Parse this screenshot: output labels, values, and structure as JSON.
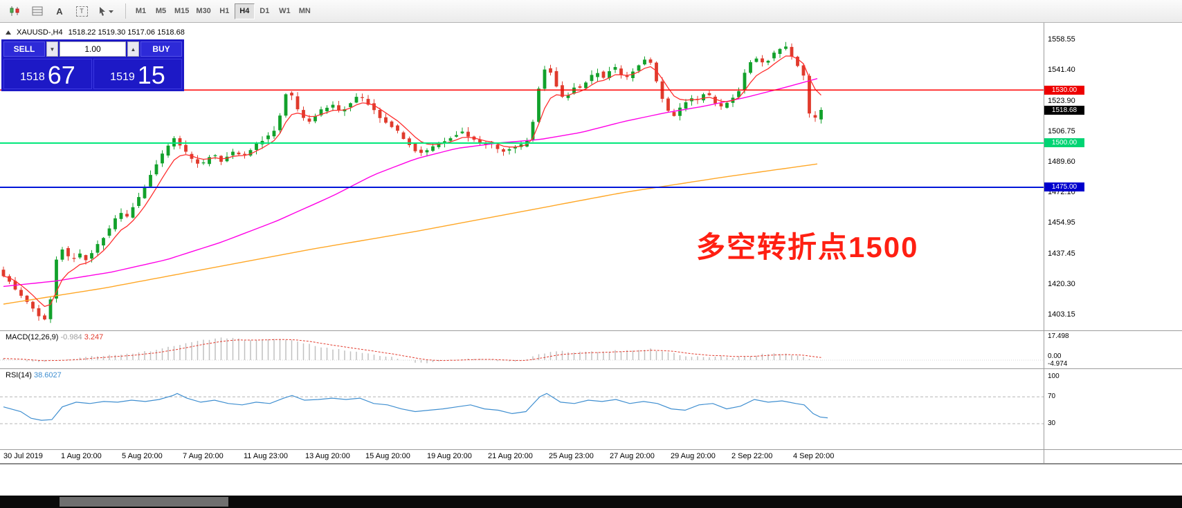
{
  "toolbar": {
    "tools": [
      "candlestick-chart",
      "grid",
      "text-label",
      "text-box",
      "cursor"
    ],
    "text_tool_glyph": "A",
    "textbox_glyph": "T",
    "timeframes": [
      "M1",
      "M5",
      "M15",
      "M30",
      "H1",
      "H4",
      "D1",
      "W1",
      "MN"
    ],
    "active_timeframe": "H4"
  },
  "chart_header": {
    "symbol": "XAUUSD-,H4",
    "ohlc": "1518.22 1519.30 1517.06 1518.68"
  },
  "trade_panel": {
    "sell_label": "SELL",
    "buy_label": "BUY",
    "volume": "1.00",
    "sell_price_main": "1518",
    "sell_price_pips": "67",
    "buy_price_main": "1519",
    "buy_price_pips": "15"
  },
  "price_axis": [
    "1558.55",
    "1541.40",
    "1523.90",
    "1506.75",
    "1489.60",
    "1472.10",
    "1454.95",
    "1437.45",
    "1420.30",
    "1403.15"
  ],
  "level_badges": {
    "resistance": "1530.00",
    "current": "1518.68",
    "pivot": "1500.00",
    "support": "1475.00"
  },
  "macd_panel": {
    "label": "MACD(12,26,9)",
    "main_value": "-0.984",
    "signal_value": "3.247",
    "axis": [
      "17.498",
      "0.00",
      "-4.974"
    ]
  },
  "rsi_panel": {
    "label": "RSI(14)",
    "value": "38.6027",
    "axis": [
      "100",
      "70",
      "30"
    ]
  },
  "time_axis": [
    "30 Jul 2019",
    "1 Aug 20:00",
    "5 Aug 20:00",
    "7 Aug 20:00",
    "11 Aug 23:00",
    "13 Aug 20:00",
    "15 Aug 20:00",
    "19 Aug 20:00",
    "21 Aug 20:00",
    "25 Aug 23:00",
    "27 Aug 20:00",
    "29 Aug 20:00",
    "2 Sep 22:00",
    "4 Sep 20:00"
  ],
  "annotation": {
    "text": "多空转折点1500",
    "color": "#ff1f12"
  },
  "colors": {
    "panel_blue": "#1d19c6",
    "up_candle": "#12a12b",
    "down_candle": "#e03a2c",
    "ma_fast": "#ff2e2e",
    "ma_mid": "#ff00e6",
    "ma_slow": "#ffa726",
    "resistance": "#ff0000",
    "pivot": "#00e87a",
    "support": "#0014d8",
    "rsi_line": "#3e8ed0",
    "macd_bar": "#c0c0c0",
    "macd_signal": "#e23a2c"
  },
  "chart_data": {
    "type": "candlestick",
    "symbol": "XAUUSD-",
    "timeframe": "H4",
    "ohlc": {
      "open": 1518.22,
      "high": 1519.3,
      "low": 1517.06,
      "close": 1518.68
    },
    "levels": {
      "resistance": 1530,
      "pivot": 1500,
      "support": 1475,
      "current_bid": 1518.67,
      "current_ask": 1519.15,
      "last": 1518.68
    },
    "price_axis_range": [
      1403.15,
      1558.55
    ],
    "price_anchors": [
      [
        5,
        1428
      ],
      [
        18,
        1424
      ],
      [
        32,
        1416
      ],
      [
        48,
        1410
      ],
      [
        62,
        1403
      ],
      [
        72,
        1399
      ],
      [
        80,
        1407
      ],
      [
        88,
        1431
      ],
      [
        96,
        1442
      ],
      [
        104,
        1437
      ],
      [
        112,
        1433
      ],
      [
        122,
        1438
      ],
      [
        132,
        1434
      ],
      [
        142,
        1439
      ],
      [
        152,
        1444
      ],
      [
        162,
        1449
      ],
      [
        172,
        1455
      ],
      [
        182,
        1461
      ],
      [
        192,
        1458
      ],
      [
        202,
        1465
      ],
      [
        212,
        1471
      ],
      [
        222,
        1479
      ],
      [
        232,
        1487
      ],
      [
        242,
        1493
      ],
      [
        252,
        1499
      ],
      [
        260,
        1503
      ],
      [
        268,
        1499
      ],
      [
        278,
        1494
      ],
      [
        288,
        1490
      ],
      [
        298,
        1487
      ],
      [
        308,
        1491
      ],
      [
        318,
        1494
      ],
      [
        328,
        1490
      ],
      [
        338,
        1493
      ],
      [
        348,
        1496
      ],
      [
        358,
        1492
      ],
      [
        368,
        1495
      ],
      [
        378,
        1499
      ],
      [
        388,
        1502
      ],
      [
        398,
        1504
      ],
      [
        408,
        1509
      ],
      [
        416,
        1520
      ],
      [
        424,
        1532
      ],
      [
        430,
        1527
      ],
      [
        438,
        1519
      ],
      [
        448,
        1514
      ],
      [
        458,
        1512
      ],
      [
        468,
        1517
      ],
      [
        478,
        1520
      ],
      [
        488,
        1522
      ],
      [
        498,
        1518
      ],
      [
        508,
        1520
      ],
      [
        518,
        1524
      ],
      [
        528,
        1527
      ],
      [
        538,
        1523
      ],
      [
        548,
        1519
      ],
      [
        558,
        1514
      ],
      [
        568,
        1511
      ],
      [
        578,
        1509
      ],
      [
        588,
        1504
      ],
      [
        598,
        1500
      ],
      [
        608,
        1496
      ],
      [
        618,
        1494
      ],
      [
        628,
        1497
      ],
      [
        638,
        1499
      ],
      [
        648,
        1501
      ],
      [
        658,
        1503
      ],
      [
        668,
        1505
      ],
      [
        678,
        1506
      ],
      [
        688,
        1503
      ],
      [
        698,
        1500
      ],
      [
        708,
        1499
      ],
      [
        718,
        1500
      ],
      [
        728,
        1497
      ],
      [
        738,
        1495
      ],
      [
        748,
        1497
      ],
      [
        758,
        1498
      ],
      [
        768,
        1500
      ],
      [
        776,
        1506
      ],
      [
        784,
        1525
      ],
      [
        792,
        1541
      ],
      [
        800,
        1543
      ],
      [
        808,
        1537
      ],
      [
        816,
        1529
      ],
      [
        824,
        1524
      ],
      [
        832,
        1529
      ],
      [
        840,
        1533
      ],
      [
        848,
        1531
      ],
      [
        856,
        1535
      ],
      [
        864,
        1538
      ],
      [
        872,
        1540
      ],
      [
        880,
        1537
      ],
      [
        888,
        1541
      ],
      [
        896,
        1543
      ],
      [
        904,
        1539
      ],
      [
        912,
        1536
      ],
      [
        920,
        1539
      ],
      [
        928,
        1543
      ],
      [
        936,
        1546
      ],
      [
        944,
        1549
      ],
      [
        950,
        1545
      ],
      [
        958,
        1534
      ],
      [
        966,
        1524
      ],
      [
        974,
        1518
      ],
      [
        982,
        1515
      ],
      [
        990,
        1519
      ],
      [
        998,
        1523
      ],
      [
        1006,
        1526
      ],
      [
        1014,
        1523
      ],
      [
        1022,
        1527
      ],
      [
        1030,
        1529
      ],
      [
        1038,
        1524
      ],
      [
        1046,
        1520
      ],
      [
        1054,
        1521
      ],
      [
        1062,
        1524
      ],
      [
        1070,
        1527
      ],
      [
        1078,
        1531
      ],
      [
        1086,
        1541
      ],
      [
        1094,
        1546
      ],
      [
        1102,
        1548
      ],
      [
        1110,
        1545
      ],
      [
        1118,
        1547
      ],
      [
        1126,
        1550
      ],
      [
        1134,
        1553
      ],
      [
        1141,
        1556
      ],
      [
        1148,
        1551
      ],
      [
        1156,
        1546
      ],
      [
        1164,
        1543
      ],
      [
        1171,
        1537
      ],
      [
        1177,
        1517
      ],
      [
        1183,
        1512
      ],
      [
        1190,
        1516
      ],
      [
        1196,
        1518.7
      ]
    ],
    "ma_mid_anchors": [
      [
        5,
        1419
      ],
      [
        80,
        1422
      ],
      [
        160,
        1427
      ],
      [
        240,
        1434
      ],
      [
        320,
        1444
      ],
      [
        400,
        1456
      ],
      [
        480,
        1470
      ],
      [
        540,
        1482
      ],
      [
        600,
        1491
      ],
      [
        660,
        1497
      ],
      [
        720,
        1500
      ],
      [
        780,
        1502
      ],
      [
        840,
        1506
      ],
      [
        900,
        1512
      ],
      [
        960,
        1517
      ],
      [
        1020,
        1521
      ],
      [
        1080,
        1526
      ],
      [
        1140,
        1532
      ],
      [
        1196,
        1538
      ]
    ],
    "ma_slow_anchors": [
      [
        5,
        1409
      ],
      [
        150,
        1418
      ],
      [
        300,
        1429
      ],
      [
        450,
        1440
      ],
      [
        600,
        1450
      ],
      [
        750,
        1461
      ],
      [
        900,
        1472
      ],
      [
        1050,
        1481
      ],
      [
        1196,
        1489
      ]
    ],
    "macd": {
      "current": -0.984,
      "signal": 3.247,
      "range": [
        -4.974,
        17.498
      ],
      "anchors": [
        [
          5,
          1
        ],
        [
          30,
          0
        ],
        [
          60,
          -1
        ],
        [
          90,
          0.5
        ],
        [
          120,
          2
        ],
        [
          150,
          3.5
        ],
        [
          180,
          4.5
        ],
        [
          210,
          6
        ],
        [
          240,
          9
        ],
        [
          270,
          12
        ],
        [
          300,
          15
        ],
        [
          320,
          16.5
        ],
        [
          340,
          15.5
        ],
        [
          360,
          14
        ],
        [
          380,
          14.5
        ],
        [
          400,
          15
        ],
        [
          420,
          14
        ],
        [
          440,
          12
        ],
        [
          460,
          10
        ],
        [
          480,
          8
        ],
        [
          500,
          7
        ],
        [
          520,
          5
        ],
        [
          540,
          4
        ],
        [
          560,
          2.5
        ],
        [
          580,
          0.5
        ],
        [
          600,
          -1.5
        ],
        [
          620,
          -2
        ],
        [
          640,
          -1
        ],
        [
          660,
          0.5
        ],
        [
          680,
          1
        ],
        [
          700,
          0.5
        ],
        [
          720,
          -0.5
        ],
        [
          740,
          -1
        ],
        [
          760,
          0.5
        ],
        [
          780,
          4
        ],
        [
          800,
          7
        ],
        [
          820,
          6
        ],
        [
          840,
          5.5
        ],
        [
          860,
          6
        ],
        [
          880,
          6.5
        ],
        [
          900,
          7
        ],
        [
          920,
          7.5
        ],
        [
          940,
          8
        ],
        [
          960,
          6
        ],
        [
          980,
          4
        ],
        [
          1000,
          2.5
        ],
        [
          1020,
          2
        ],
        [
          1040,
          2.5
        ],
        [
          1060,
          2
        ],
        [
          1080,
          3
        ],
        [
          1100,
          4
        ],
        [
          1120,
          4.5
        ],
        [
          1140,
          4
        ],
        [
          1160,
          2
        ],
        [
          1175,
          0
        ],
        [
          1196,
          -1
        ]
      ]
    },
    "rsi": {
      "current": 38.6027,
      "levels": [
        70,
        30
      ],
      "anchors": [
        [
          5,
          55
        ],
        [
          30,
          48
        ],
        [
          45,
          38
        ],
        [
          60,
          35
        ],
        [
          75,
          36
        ],
        [
          90,
          55
        ],
        [
          110,
          62
        ],
        [
          130,
          60
        ],
        [
          150,
          63
        ],
        [
          170,
          62
        ],
        [
          190,
          65
        ],
        [
          210,
          63
        ],
        [
          230,
          66
        ],
        [
          250,
          72
        ],
        [
          256,
          75
        ],
        [
          270,
          68
        ],
        [
          290,
          62
        ],
        [
          310,
          65
        ],
        [
          330,
          60
        ],
        [
          350,
          58
        ],
        [
          370,
          62
        ],
        [
          390,
          60
        ],
        [
          410,
          68
        ],
        [
          422,
          72
        ],
        [
          440,
          65
        ],
        [
          460,
          66
        ],
        [
          480,
          68
        ],
        [
          500,
          66
        ],
        [
          520,
          68
        ],
        [
          540,
          60
        ],
        [
          560,
          58
        ],
        [
          580,
          52
        ],
        [
          600,
          48
        ],
        [
          620,
          50
        ],
        [
          640,
          52
        ],
        [
          660,
          55
        ],
        [
          680,
          58
        ],
        [
          700,
          52
        ],
        [
          720,
          50
        ],
        [
          740,
          45
        ],
        [
          760,
          48
        ],
        [
          780,
          70
        ],
        [
          790,
          75
        ],
        [
          810,
          62
        ],
        [
          830,
          60
        ],
        [
          850,
          65
        ],
        [
          870,
          63
        ],
        [
          890,
          66
        ],
        [
          910,
          60
        ],
        [
          930,
          63
        ],
        [
          950,
          60
        ],
        [
          970,
          52
        ],
        [
          990,
          50
        ],
        [
          1010,
          58
        ],
        [
          1030,
          60
        ],
        [
          1050,
          52
        ],
        [
          1070,
          56
        ],
        [
          1090,
          66
        ],
        [
          1110,
          62
        ],
        [
          1130,
          64
        ],
        [
          1150,
          60
        ],
        [
          1162,
          58
        ],
        [
          1175,
          45
        ],
        [
          1185,
          40
        ],
        [
          1196,
          38.6
        ]
      ]
    }
  }
}
